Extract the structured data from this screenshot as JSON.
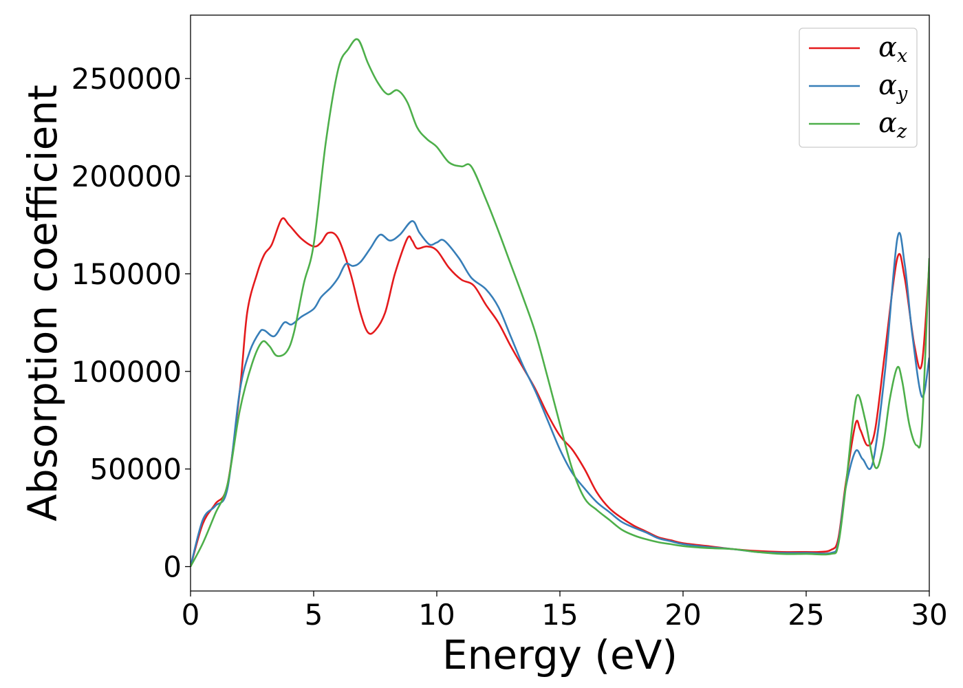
{
  "chart_data": {
    "type": "line",
    "title": "",
    "xlabel": "Energy (eV)",
    "ylabel": "Absorption coefficient",
    "xlim": [
      0,
      30
    ],
    "ylim": [
      -12500,
      282500
    ],
    "xticks": [
      0,
      5,
      10,
      15,
      20,
      25,
      30
    ],
    "yticks": [
      0,
      50000,
      100000,
      150000,
      200000,
      250000
    ],
    "grid": false,
    "legend_position": "top-right",
    "series": [
      {
        "name": "α_x",
        "legend_base": "α",
        "legend_sub": "x",
        "color": "#e41a1c",
        "points": [
          [
            0,
            0
          ],
          [
            0.5,
            22000
          ],
          [
            1,
            32000
          ],
          [
            1.5,
            42000
          ],
          [
            2,
            90000
          ],
          [
            2.3,
            130000
          ],
          [
            2.7,
            150000
          ],
          [
            3,
            160000
          ],
          [
            3.3,
            165000
          ],
          [
            3.7,
            178000
          ],
          [
            4,
            175000
          ],
          [
            4.5,
            168000
          ],
          [
            5,
            164000
          ],
          [
            5.3,
            166000
          ],
          [
            5.6,
            171000
          ],
          [
            6,
            168000
          ],
          [
            6.5,
            150000
          ],
          [
            6.9,
            130000
          ],
          [
            7.2,
            120000
          ],
          [
            7.5,
            121000
          ],
          [
            7.9,
            130000
          ],
          [
            8.3,
            150000
          ],
          [
            8.8,
            168000
          ],
          [
            9,
            167000
          ],
          [
            9.2,
            163000
          ],
          [
            9.6,
            164000
          ],
          [
            10,
            162000
          ],
          [
            10.5,
            153000
          ],
          [
            11,
            147000
          ],
          [
            11.5,
            144000
          ],
          [
            12,
            134000
          ],
          [
            12.5,
            125000
          ],
          [
            13,
            113000
          ],
          [
            13.5,
            102000
          ],
          [
            14,
            91000
          ],
          [
            14.5,
            78000
          ],
          [
            15,
            67000
          ],
          [
            15.5,
            60000
          ],
          [
            16,
            50000
          ],
          [
            16.5,
            38000
          ],
          [
            17,
            30000
          ],
          [
            17.5,
            25000
          ],
          [
            18,
            21000
          ],
          [
            18.5,
            18000
          ],
          [
            19,
            15000
          ],
          [
            19.5,
            13500
          ],
          [
            20,
            12000
          ],
          [
            21,
            10500
          ],
          [
            22,
            9000
          ],
          [
            23,
            8000
          ],
          [
            24,
            7500
          ],
          [
            25,
            7500
          ],
          [
            25.5,
            7500
          ],
          [
            26,
            8500
          ],
          [
            26.3,
            14000
          ],
          [
            26.6,
            42000
          ],
          [
            27,
            73000
          ],
          [
            27.2,
            70000
          ],
          [
            27.5,
            62000
          ],
          [
            27.8,
            70000
          ],
          [
            28.2,
            110000
          ],
          [
            28.7,
            158000
          ],
          [
            29,
            148000
          ],
          [
            29.4,
            113000
          ],
          [
            29.7,
            104000
          ],
          [
            30,
            155000
          ]
        ]
      },
      {
        "name": "α_y",
        "legend_base": "α",
        "legend_sub": "y",
        "color": "#377eb8",
        "points": [
          [
            0,
            0
          ],
          [
            0.5,
            24000
          ],
          [
            1,
            31000
          ],
          [
            1.5,
            40000
          ],
          [
            2,
            90000
          ],
          [
            2.4,
            110000
          ],
          [
            2.8,
            120000
          ],
          [
            3,
            121000
          ],
          [
            3.4,
            118000
          ],
          [
            3.8,
            125000
          ],
          [
            4.1,
            124000
          ],
          [
            4.5,
            128000
          ],
          [
            5,
            132000
          ],
          [
            5.3,
            138000
          ],
          [
            5.7,
            143000
          ],
          [
            6,
            148000
          ],
          [
            6.3,
            155000
          ],
          [
            6.6,
            154000
          ],
          [
            6.9,
            156000
          ],
          [
            7.3,
            163000
          ],
          [
            7.7,
            170000
          ],
          [
            8.1,
            167000
          ],
          [
            8.5,
            170000
          ],
          [
            9,
            177000
          ],
          [
            9.3,
            171000
          ],
          [
            9.7,
            165000
          ],
          [
            10,
            166000
          ],
          [
            10.3,
            167000
          ],
          [
            10.9,
            158000
          ],
          [
            11.4,
            148000
          ],
          [
            12,
            142000
          ],
          [
            12.5,
            133000
          ],
          [
            13,
            118000
          ],
          [
            13.5,
            103000
          ],
          [
            14,
            90000
          ],
          [
            14.5,
            75000
          ],
          [
            15,
            60000
          ],
          [
            15.5,
            48000
          ],
          [
            16,
            40000
          ],
          [
            16.5,
            33000
          ],
          [
            17,
            28000
          ],
          [
            17.5,
            23000
          ],
          [
            18,
            20000
          ],
          [
            18.5,
            17500
          ],
          [
            19,
            14500
          ],
          [
            19.5,
            13000
          ],
          [
            20,
            11500
          ],
          [
            21,
            10000
          ],
          [
            22,
            9000
          ],
          [
            23,
            7500
          ],
          [
            24,
            7000
          ],
          [
            25,
            7000
          ],
          [
            26,
            7000
          ],
          [
            26.3,
            12000
          ],
          [
            26.6,
            40000
          ],
          [
            27,
            59000
          ],
          [
            27.3,
            55000
          ],
          [
            27.7,
            53000
          ],
          [
            28.2,
            100000
          ],
          [
            28.7,
            168000
          ],
          [
            29,
            155000
          ],
          [
            29.3,
            120000
          ],
          [
            29.7,
            87000
          ],
          [
            30,
            107000
          ]
        ]
      },
      {
        "name": "α_z",
        "legend_base": "α",
        "legend_sub": "z",
        "color": "#4daf4a",
        "points": [
          [
            0,
            0
          ],
          [
            0.5,
            12000
          ],
          [
            1,
            27000
          ],
          [
            1.5,
            42000
          ],
          [
            2,
            80000
          ],
          [
            2.5,
            104000
          ],
          [
            2.9,
            115000
          ],
          [
            3.2,
            113000
          ],
          [
            3.5,
            108000
          ],
          [
            3.9,
            110000
          ],
          [
            4.2,
            120000
          ],
          [
            4.6,
            145000
          ],
          [
            5,
            165000
          ],
          [
            5.5,
            218000
          ],
          [
            6,
            255000
          ],
          [
            6.4,
            265000
          ],
          [
            6.8,
            270000
          ],
          [
            7.2,
            258000
          ],
          [
            7.6,
            248000
          ],
          [
            8,
            242000
          ],
          [
            8.4,
            244000
          ],
          [
            8.8,
            238000
          ],
          [
            9.2,
            225000
          ],
          [
            9.6,
            219000
          ],
          [
            10,
            215000
          ],
          [
            10.5,
            207000
          ],
          [
            11,
            205000
          ],
          [
            11.4,
            205000
          ],
          [
            12,
            188000
          ],
          [
            12.5,
            172000
          ],
          [
            13,
            155000
          ],
          [
            13.5,
            138000
          ],
          [
            14,
            120000
          ],
          [
            14.5,
            97000
          ],
          [
            15,
            73000
          ],
          [
            15.5,
            50000
          ],
          [
            16,
            35000
          ],
          [
            16.5,
            29000
          ],
          [
            17,
            24000
          ],
          [
            17.5,
            19000
          ],
          [
            18,
            16000
          ],
          [
            18.5,
            14000
          ],
          [
            19,
            12500
          ],
          [
            19.5,
            11500
          ],
          [
            20,
            10500
          ],
          [
            21,
            9500
          ],
          [
            22,
            9000
          ],
          [
            23,
            7500
          ],
          [
            24,
            6500
          ],
          [
            25,
            6500
          ],
          [
            26,
            6500
          ],
          [
            26.3,
            11000
          ],
          [
            26.6,
            40000
          ],
          [
            26.9,
            75000
          ],
          [
            27.1,
            88000
          ],
          [
            27.4,
            75000
          ],
          [
            27.8,
            51000
          ],
          [
            28.1,
            60000
          ],
          [
            28.4,
            86000
          ],
          [
            28.7,
            102000
          ],
          [
            28.9,
            95000
          ],
          [
            29.2,
            72000
          ],
          [
            29.5,
            62000
          ],
          [
            29.7,
            72000
          ],
          [
            30,
            158000
          ]
        ]
      }
    ]
  }
}
